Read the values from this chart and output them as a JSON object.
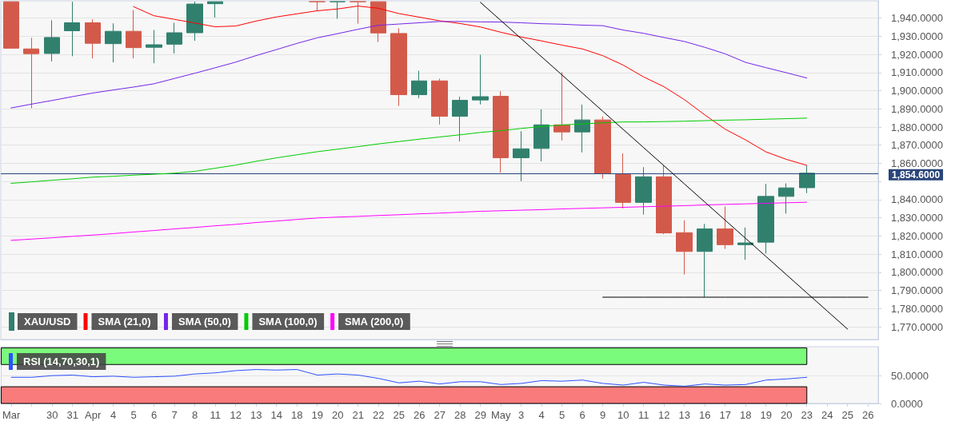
{
  "chart_data": [
    {
      "type": "candlestick",
      "categories": [
        "Mar",
        null,
        "30",
        "31",
        "Apr",
        "4",
        "5",
        "6",
        "7",
        "8",
        "11",
        "12",
        "13",
        "14",
        "18",
        "19",
        "20",
        "21",
        "22",
        "25",
        "26",
        "27",
        "28",
        "29",
        "May",
        "3",
        "4",
        "5",
        "6",
        "9",
        "10",
        "11",
        "12",
        "13",
        "16",
        "17",
        "18",
        "19",
        "20",
        "23",
        "24",
        "25",
        "26"
      ],
      "series": [
        {
          "name": "XAU/USD",
          "ohlc": [
            [
              1949,
              1949,
              1923.4,
              1923.4
            ],
            [
              1923.0,
              1929.1,
              1890.4,
              1920.4
            ],
            [
              1920.5,
              1938.8,
              1916.1,
              1929.3
            ],
            [
              1933.0,
              1949,
              1919.0,
              1937.4
            ],
            [
              1937.4,
              1939.3,
              1917.8,
              1926.1
            ],
            [
              1925.9,
              1937.1,
              1915.6,
              1932.7
            ],
            [
              1932.7,
              1944.4,
              1917.8,
              1923.7
            ],
            [
              1923.9,
              1933.4,
              1915.1,
              1925.3
            ],
            [
              1925.6,
              1937.4,
              1920.5,
              1931.9
            ],
            [
              1931.9,
              1949,
              1927.5,
              1947.7
            ],
            [
              1947.9,
              1949,
              1940.3,
              1949
            ],
            null,
            null,
            null,
            null,
            [
              1949,
              1949,
              1944.0,
              1949
            ],
            [
              1949,
              1949,
              1939.6,
              1949
            ],
            [
              1949,
              1949,
              1936.9,
              1949
            ],
            [
              1949,
              1949,
              1926.8,
              1931.8
            ],
            [
              1931.5,
              1934.4,
              1891.6,
              1897.8
            ],
            [
              1897.8,
              1911.0,
              1895.9,
              1905.4
            ],
            [
              1905.4,
              1906.6,
              1881.4,
              1885.9
            ],
            [
              1885.9,
              1896.7,
              1872.1,
              1894.7
            ],
            [
              1894.9,
              1919.8,
              1892.4,
              1896.7
            ],
            [
              1896.9,
              1899.7,
              1854.9,
              1863.1
            ],
            [
              1863.1,
              1877.7,
              1850.2,
              1868.0
            ],
            [
              1868.2,
              1889.7,
              1861.1,
              1881.2
            ],
            [
              1881.2,
              1910.2,
              1872.6,
              1877.3
            ],
            [
              1877.3,
              1892.3,
              1866.0,
              1883.9
            ],
            [
              1883.9,
              1885.8,
              1851.6,
              1854.3
            ],
            [
              1853.8,
              1865.5,
              1835.2,
              1838.5
            ],
            [
              1838.5,
              1857.9,
              1831.8,
              1852.6
            ],
            [
              1852.6,
              1858.9,
              1821.0,
              1821.7
            ],
            [
              1821.8,
              1828.6,
              1798.8,
              1811.5
            ],
            [
              1811.5,
              1826.7,
              1786.3,
              1823.9
            ],
            [
              1823.9,
              1836.2,
              1812.9,
              1815.2
            ],
            [
              1815.2,
              1824.7,
              1806.9,
              1816.2
            ],
            [
              1816.6,
              1848.7,
              1810.3,
              1841.8
            ],
            [
              1841.8,
              1849.0,
              1832.3,
              1846.5
            ],
            [
              1846.6,
              1858.7,
              1843.6,
              1854.6
            ],
            null,
            null,
            null
          ],
          "colors": [
            "#d35a4a",
            "#d35a4a",
            "#31806e",
            "#31806e",
            "#d35a4a",
            "#31806e",
            "#d35a4a",
            "#31806e",
            "#31806e",
            "#31806e",
            "#31806e",
            null,
            null,
            null,
            null,
            "#d35a4a",
            "#31806e",
            "#d35a4a",
            "#d35a4a",
            "#d35a4a",
            "#31806e",
            "#d35a4a",
            "#31806e",
            "#31806e",
            "#d35a4a",
            "#31806e",
            "#31806e",
            "#d35a4a",
            "#31806e",
            "#d35a4a",
            "#d35a4a",
            "#31806e",
            "#d35a4a",
            "#d35a4a",
            "#31806e",
            "#d35a4a",
            "#31806e",
            "#31806e",
            "#31806e",
            "#31806e",
            null,
            null,
            null
          ]
        },
        {
          "name": "SMA (21,0)",
          "type": "line",
          "color": "#ff0000",
          "values": [
            null,
            null,
            null,
            null,
            null,
            null,
            1946.3,
            1941.3,
            1939.3,
            1937.3,
            1935.2,
            1935.6,
            1938.3,
            1940.6,
            1942.3,
            1944.0,
            1945.0,
            1946.6,
            1945.4,
            1942.5,
            1940.5,
            1938.5,
            1937.0,
            1935.1,
            1932.2,
            1929.6,
            1927.4,
            1925.1,
            1923.0,
            1919.3,
            1914.1,
            1907.6,
            1902.2,
            1895.1,
            1886.7,
            1878.8,
            1872.9,
            1866.3,
            1862.2,
            1858.9,
            null,
            null,
            null
          ]
        },
        {
          "name": "SMA (50,0)",
          "type": "line",
          "color": "#7325e8",
          "values": [
            1890.5,
            1892.6,
            1894.6,
            1896.7,
            1898.7,
            1900.4,
            1902.0,
            1903.8,
            1906.7,
            1909.6,
            1912.6,
            1915.7,
            1919.3,
            1922.6,
            1926.0,
            1929.1,
            1931.4,
            1933.8,
            1936.0,
            1936.7,
            1937.4,
            1938.1,
            1938.1,
            1937.9,
            1937.8,
            1937.4,
            1936.9,
            1936.6,
            1936.1,
            1935.8,
            1933.4,
            1931.6,
            1929.3,
            1927.1,
            1923.9,
            1920.3,
            1915.6,
            1912.7,
            1909.9,
            1907.0,
            null,
            null,
            null
          ]
        },
        {
          "name": "SMA (100,0)",
          "type": "line",
          "color": "#00cc00",
          "values": [
            1849.0,
            1849.8,
            1850.7,
            1851.5,
            1852.4,
            1852.9,
            1853.5,
            1854.0,
            1854.6,
            1855.6,
            1857.3,
            1859.0,
            1861.1,
            1863.0,
            1864.7,
            1866.4,
            1867.8,
            1869.2,
            1870.7,
            1872.0,
            1873.3,
            1874.5,
            1875.7,
            1877.0,
            1878.0,
            1879.2,
            1880.3,
            1881.1,
            1881.7,
            1882.3,
            1882.8,
            1882.8,
            1883.0,
            1883.2,
            1883.5,
            1883.8,
            1884.0,
            1884.3,
            1884.6,
            1884.9,
            null,
            null,
            null
          ]
        },
        {
          "name": "SMA (200,0)",
          "type": "line",
          "color": "#ff00ff",
          "values": [
            1817.6,
            1818.3,
            1819.0,
            1819.8,
            1820.5,
            1821.3,
            1822.2,
            1823.0,
            1823.9,
            1824.7,
            1825.6,
            1826.4,
            1827.4,
            1828.2,
            1829.1,
            1829.9,
            1830.4,
            1830.8,
            1831.3,
            1831.7,
            1832.2,
            1832.6,
            1833.1,
            1833.6,
            1833.9,
            1834.2,
            1834.5,
            1834.9,
            1835.2,
            1835.5,
            1835.8,
            1836.1,
            1836.4,
            1836.7,
            1837.1,
            1837.4,
            1837.7,
            1838.0,
            1838.3,
            1838.6,
            null,
            null,
            null
          ]
        },
        {
          "type": "line",
          "color": "#000000",
          "values": [
            null,
            null,
            null,
            null,
            null,
            null,
            null,
            null,
            null,
            null,
            null,
            null,
            null,
            null,
            null,
            null,
            null,
            null,
            null,
            null,
            null,
            null,
            null,
            1948.7,
            1938.7,
            1928.7,
            1918.7,
            1908.7,
            1898.7,
            1888.7,
            1878.7,
            1868.7,
            1858.7,
            1848.7,
            1838.7,
            1828.7,
            1818.7,
            1808.7,
            1798.7,
            1788.7,
            1778.7,
            1768.7,
            null
          ]
        },
        {
          "type": "line",
          "color": "#000000",
          "values": [
            null,
            null,
            null,
            null,
            null,
            null,
            null,
            null,
            null,
            null,
            null,
            null,
            null,
            null,
            null,
            null,
            null,
            null,
            null,
            null,
            null,
            null,
            null,
            null,
            null,
            null,
            null,
            null,
            null,
            1786.3,
            1786.3,
            1786.3,
            1786.3,
            1786.3,
            1786.3,
            1786.3,
            1786.3,
            1786.3,
            1786.3,
            1786.3,
            1786.3,
            1786.3,
            1786.3
          ]
        }
      ],
      "ylim": [
        1763,
        1949.5
      ],
      "yticks": [
        {
          "value": 1770,
          "label": "1,770.0000"
        },
        {
          "value": 1780,
          "label": "1,780.0000"
        },
        {
          "value": 1790,
          "label": "1,790.0000"
        },
        {
          "value": 1800,
          "label": "1,800.0000"
        },
        {
          "value": 1810,
          "label": "1,810.0000"
        },
        {
          "value": 1820,
          "label": "1,820.0000"
        },
        {
          "value": 1830,
          "label": "1,830.0000"
        },
        {
          "value": 1840,
          "label": "1,840.0000"
        },
        {
          "value": 1850,
          "label": null
        },
        {
          "value": 1860,
          "label": "1,860.0000"
        },
        {
          "value": 1870,
          "label": "1,870.0000"
        },
        {
          "value": 1880,
          "label": "1,880.0000"
        },
        {
          "value": 1890,
          "label": "1,890.0000"
        },
        {
          "value": 1900,
          "label": "1,900.0000"
        },
        {
          "value": 1910,
          "label": "1,910.0000"
        },
        {
          "value": 1920,
          "label": "1,920.0000"
        },
        {
          "value": 1930,
          "label": "1,930.0000"
        },
        {
          "value": 1940,
          "label": "1,940.0000"
        }
      ],
      "ref_lines": [
        {
          "axis": "y",
          "value": 1854.6,
          "label": "1,854.6000",
          "color": "#29457a"
        }
      ],
      "grid": "y",
      "legend": "bottom left",
      "tick_labels": "y",
      "marker": "none"
    },
    {
      "type": "line",
      "categories": [
        "Mar",
        null,
        "30",
        "31",
        "Apr",
        "4",
        "5",
        "6",
        "7",
        "8",
        "11",
        "12",
        "13",
        "14",
        "18",
        "19",
        "20",
        "21",
        "22",
        "25",
        "26",
        "27",
        "28",
        "29",
        "May",
        "3",
        "4",
        "5",
        "6",
        "9",
        "10",
        "11",
        "12",
        "13",
        "16",
        "17",
        "18",
        "19",
        "20",
        "23",
        "24",
        "25",
        "26"
      ],
      "series": [
        {
          "name": "RSI (14,70,30,1)",
          "color": "#2f52ff",
          "values": [
            47,
            47,
            50,
            51,
            48,
            49,
            47,
            48,
            49,
            53,
            55,
            59,
            61,
            60,
            61,
            51,
            53,
            51,
            45,
            37,
            40,
            35,
            39,
            39,
            34,
            36,
            41,
            40,
            42,
            36,
            33,
            38,
            33,
            31,
            35,
            33,
            34,
            42,
            44,
            47,
            null,
            null,
            null
          ]
        }
      ],
      "ylim": [
        0,
        102
      ],
      "yticks": [
        {
          "value": 0,
          "label": "0.0000"
        },
        {
          "value": 50,
          "label": "50.0000"
        }
      ],
      "bands": [
        {
          "axis": "y",
          "from": 70,
          "to": 100,
          "color": "#7bfb7b"
        },
        {
          "axis": "y",
          "from": 0,
          "to": 30,
          "color": "#f97b7b"
        }
      ],
      "grid": "y",
      "legend": "top left",
      "marker": "none"
    }
  ]
}
